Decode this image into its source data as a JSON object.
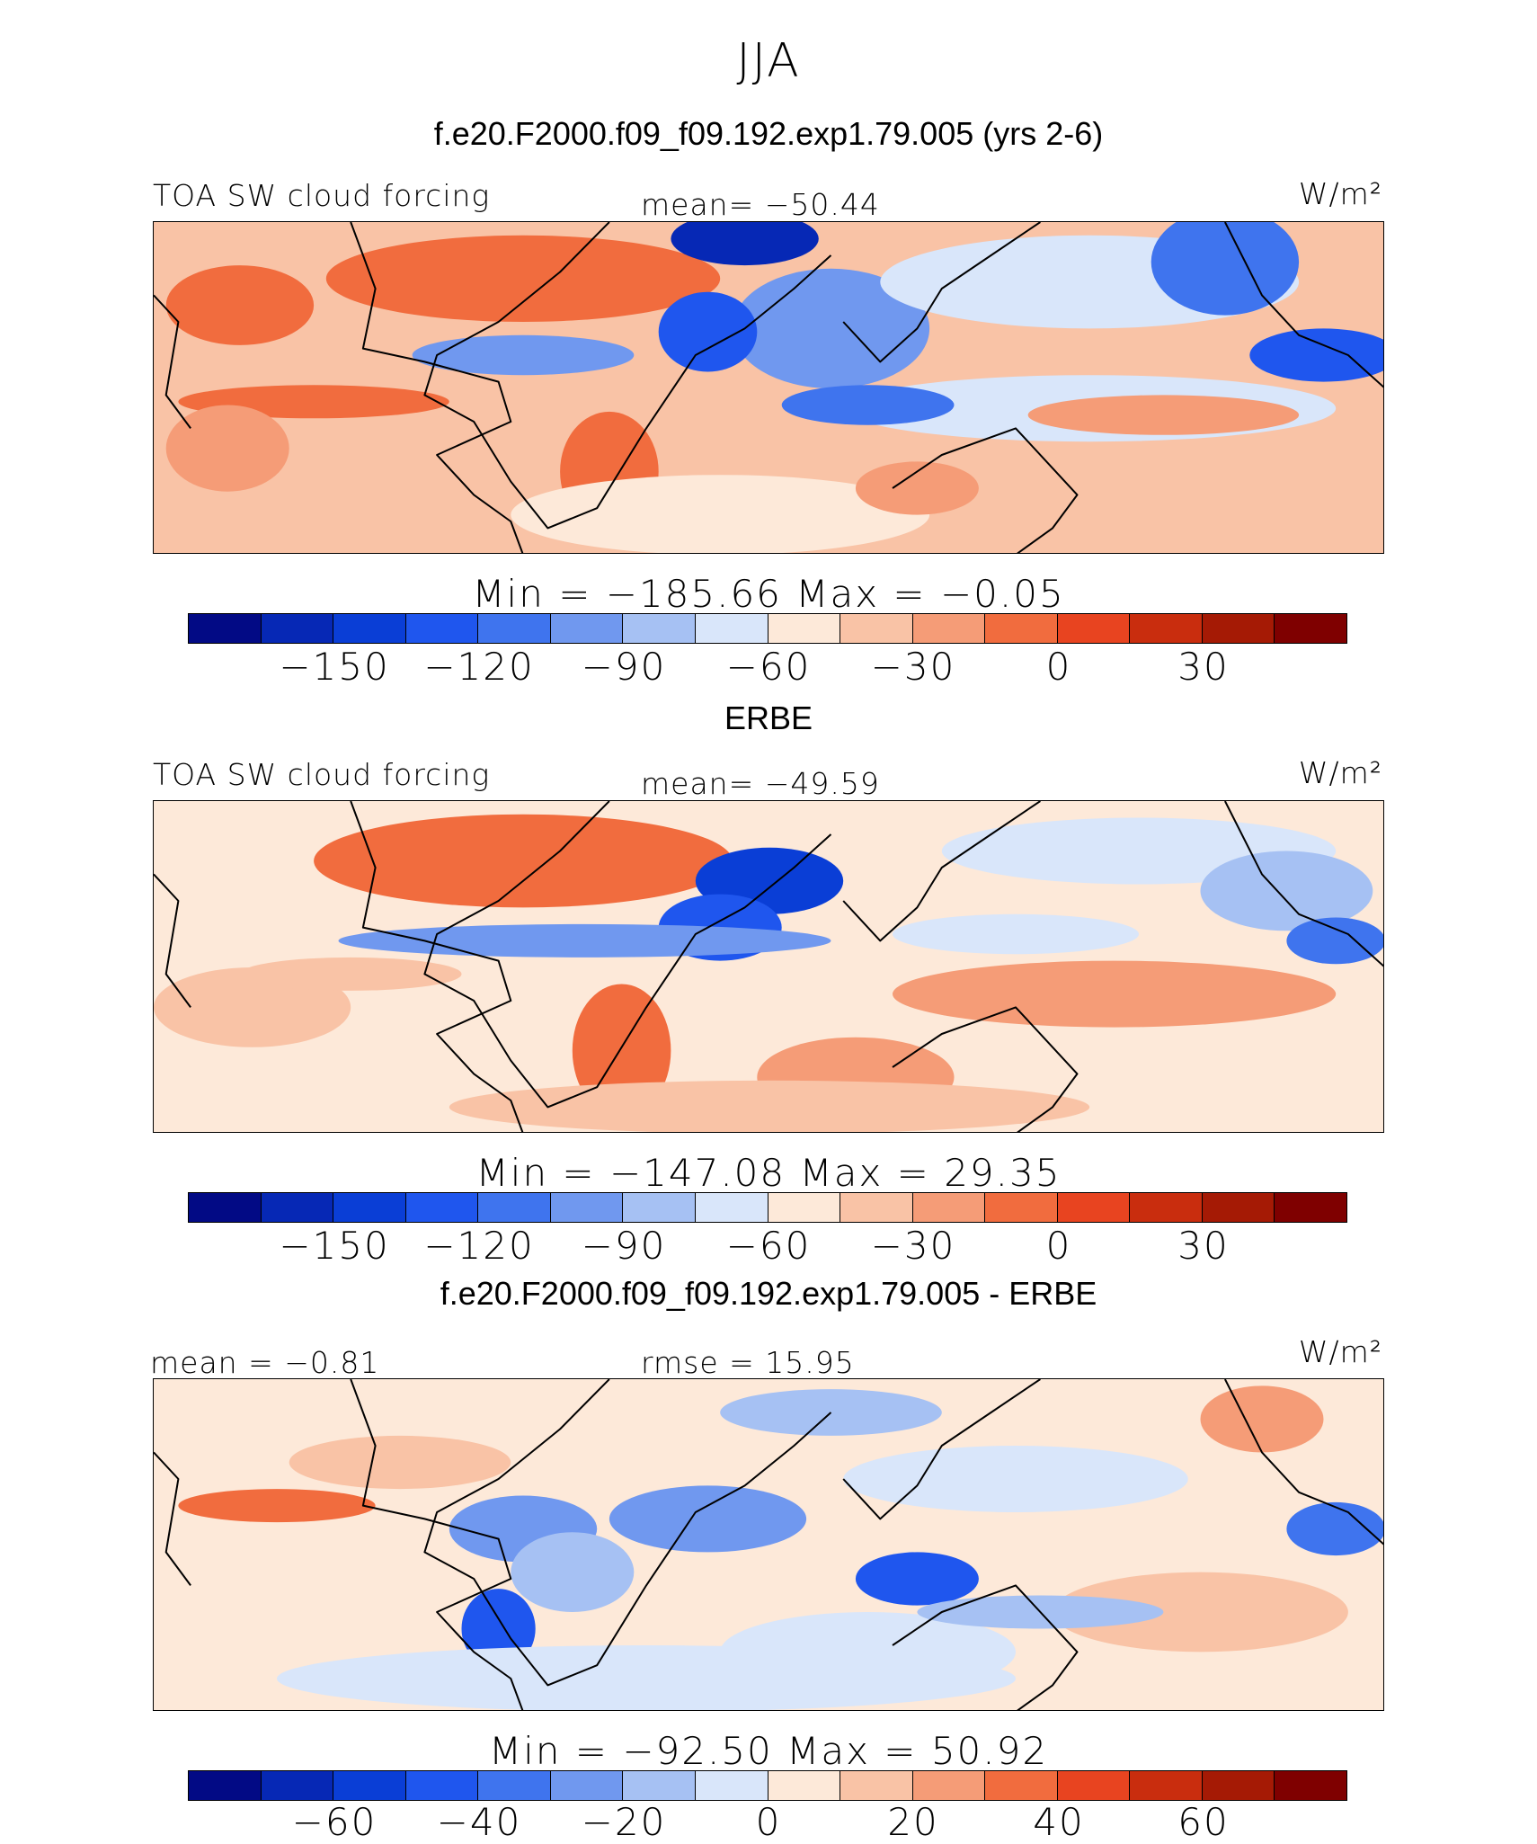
{
  "page": {
    "title": "JJA"
  },
  "panels": [
    {
      "subtitle": "f.e20.F2000.f09_f09.192.exp1.79.005 (yrs 2-6)",
      "left_label": "TOA SW cloud forcing",
      "center_label": "mean=  −50.44",
      "units": "W/m²",
      "minmax": "Min  =  −185.66  Max  =    −0.05",
      "colorbar_ticks": [
        "−150",
        "−120",
        "−90",
        "−60",
        "−30",
        "0",
        "30"
      ]
    },
    {
      "subtitle": "ERBE",
      "left_label": "TOA SW cloud forcing",
      "center_label": "mean=  −49.59",
      "units": "W/m²",
      "minmax": "Min  =  −147.08  Max  =    29.35",
      "colorbar_ticks": [
        "−150",
        "−120",
        "−90",
        "−60",
        "−30",
        "0",
        "30"
      ]
    },
    {
      "subtitle": "f.e20.F2000.f09_f09.192.exp1.79.005 - ERBE",
      "left_label": "mean  =   −0.81",
      "center_label": "rmse  =   15.95",
      "units": "W/m²",
      "minmax": "Min  =  −92.50  Max  =    50.92",
      "colorbar_ticks": [
        "−60",
        "−40",
        "−20",
        "0",
        "20",
        "40",
        "60"
      ]
    }
  ],
  "chart_data": [
    {
      "type": "heatmap",
      "title": "f.e20.F2000.f09_f09.192.exp1.79.005 (yrs 2-6)",
      "variable": "TOA SW cloud forcing",
      "units": "W/m²",
      "mean": -50.44,
      "min": -185.66,
      "max": -0.05,
      "colorbar_levels": [
        -165,
        -150,
        -135,
        -120,
        -105,
        -90,
        -75,
        -60,
        -45,
        -30,
        -15,
        0,
        15,
        30,
        45
      ],
      "colorbar_ticks": [
        -150,
        -120,
        -90,
        -60,
        -30,
        0,
        30
      ]
    },
    {
      "type": "heatmap",
      "title": "ERBE",
      "variable": "TOA SW cloud forcing",
      "units": "W/m²",
      "mean": -49.59,
      "min": -147.08,
      "max": 29.35,
      "colorbar_levels": [
        -165,
        -150,
        -135,
        -120,
        -105,
        -90,
        -75,
        -60,
        -45,
        -30,
        -15,
        0,
        15,
        30,
        45
      ],
      "colorbar_ticks": [
        -150,
        -120,
        -90,
        -60,
        -30,
        0,
        30
      ]
    },
    {
      "type": "heatmap",
      "title": "f.e20.F2000.f09_f09.192.exp1.79.005 - ERBE",
      "units": "W/m²",
      "mean": -0.81,
      "rmse": 15.95,
      "min": -92.5,
      "max": 50.92,
      "colorbar_levels": [
        -70,
        -60,
        -50,
        -40,
        -30,
        -20,
        -10,
        0,
        10,
        20,
        30,
        40,
        50,
        60,
        70
      ],
      "colorbar_ticks": [
        -60,
        -40,
        -20,
        0,
        20,
        40,
        60
      ]
    }
  ],
  "colors": {
    "palette": [
      "#020a85",
      "#0628b5",
      "#0a3ed6",
      "#1f56ee",
      "#3f74ee",
      "#7098ef",
      "#a6c1f3",
      "#d9e6fa",
      "#fde9d9",
      "#f9c3a6",
      "#f59c77",
      "#f16c3e",
      "#e84420",
      "#c92d0e",
      "#a51a05",
      "#7f0000"
    ]
  }
}
